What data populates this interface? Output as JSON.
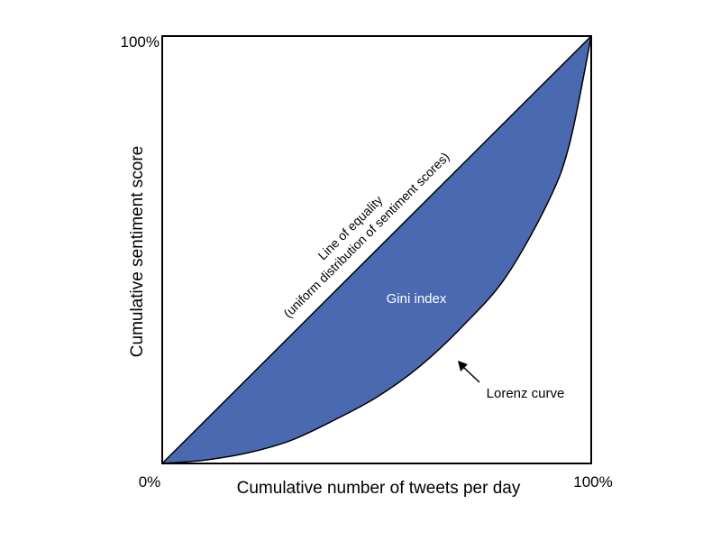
{
  "chart_data": {
    "type": "area",
    "title": "",
    "xlabel": "Cumulative number of tweets per day",
    "ylabel": "Cumulative sentiment score",
    "xlim": [
      0,
      100
    ],
    "ylim": [
      0,
      100
    ],
    "x_tick_labels": {
      "min": "0%",
      "max": "100%"
    },
    "y_tick_labels": {
      "max": "100%"
    },
    "grid": false,
    "series": [
      {
        "name": "Line of equality",
        "x": [
          0,
          100
        ],
        "y": [
          0,
          100
        ]
      },
      {
        "name": "Lorenz curve",
        "x": [
          0,
          10,
          20,
          30,
          40,
          50,
          60,
          70,
          80,
          90,
          95,
          100
        ],
        "y": [
          0,
          0.8,
          2.5,
          5.4,
          10.1,
          15.5,
          22.7,
          32.1,
          43.5,
          61.3,
          75,
          100
        ]
      }
    ],
    "fill_color": "#4a69b0",
    "annotations": {
      "equality_line_1": "Line of equality",
      "equality_line_2": "(uniform distribution of sentiment scores)",
      "gini": "Gini index",
      "lorenz": "Lorenz curve"
    }
  }
}
